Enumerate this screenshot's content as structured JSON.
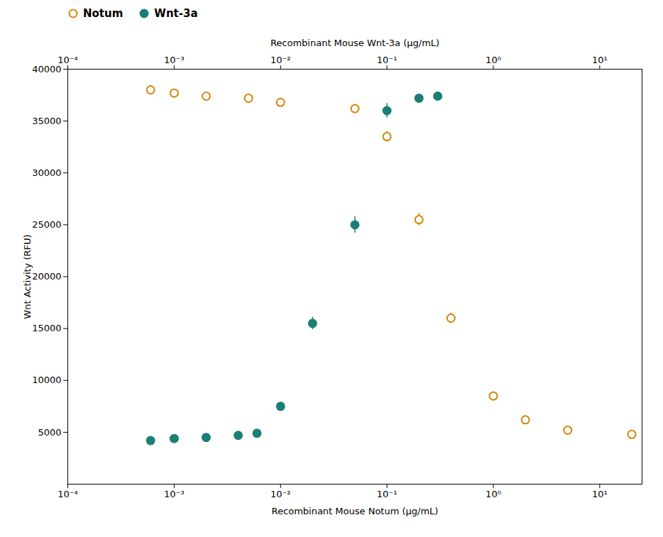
{
  "chart_data": {
    "type": "scatter",
    "xlabel": "Recombinant Mouse Notum (μg/mL)",
    "x2label": "Recombinant Mouse Wnt-3a (μg/mL)",
    "ylabel": "Wnt Activity (RFU)",
    "log": "x",
    "xlim": [
      0.0001,
      25
    ],
    "xticks": [
      {
        "value": 0.0001,
        "label": "10⁻⁴"
      },
      {
        "value": 0.001,
        "label": "10⁻³"
      },
      {
        "value": 0.01,
        "label": "10⁻²"
      },
      {
        "value": 0.1,
        "label": "10⁻¹"
      },
      {
        "value": 1,
        "label": "10⁰"
      },
      {
        "value": 10,
        "label": "10¹"
      }
    ],
    "ylim": [
      0,
      40000
    ],
    "yticks": [
      5000,
      10000,
      15000,
      20000,
      25000,
      30000,
      35000,
      40000
    ],
    "grid": false,
    "legend": "upper left",
    "series": [
      {
        "name": "Notum",
        "color": "#D4860A",
        "marker": "circle_open",
        "x": [
          0.0006,
          0.001,
          0.002,
          0.005,
          0.01,
          0.05,
          0.1,
          0.2,
          0.4,
          1.0,
          2.0,
          5.0,
          20.0
        ],
        "values": [
          38000,
          37700,
          37400,
          37200,
          36800,
          36200,
          33500,
          25500,
          16000,
          8500,
          6200,
          5200,
          4800
        ],
        "yerr": [
          450,
          350,
          350,
          300,
          350,
          350,
          500,
          600,
          500,
          400,
          200,
          150,
          150
        ]
      },
      {
        "name": "Wnt-3a",
        "color": "#1A7F74",
        "marker": "circle",
        "x": [
          0.0006,
          0.001,
          0.002,
          0.004,
          0.006,
          0.01,
          0.02,
          0.05,
          0.1,
          0.2,
          0.3
        ],
        "values": [
          4200,
          4400,
          4500,
          4700,
          4900,
          7500,
          15500,
          25000,
          36000,
          37200,
          37400
        ],
        "yerr": [
          300,
          200,
          200,
          200,
          250,
          300,
          600,
          800,
          700,
          400,
          300
        ]
      }
    ]
  }
}
